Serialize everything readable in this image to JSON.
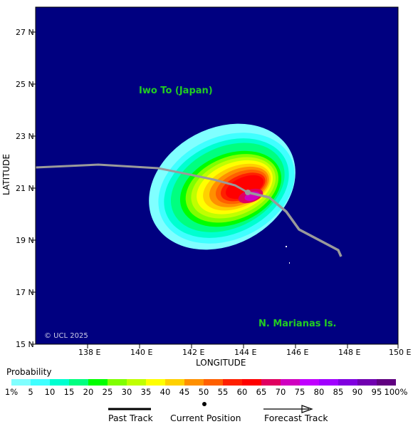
{
  "map": {
    "y_axis_title": "LATITUDE",
    "x_axis_title": "LONGITUDE",
    "lat_ticks": [
      "15 N",
      "17 N",
      "19 N",
      "21 N",
      "23 N",
      "25 N",
      "27 N"
    ],
    "lon_ticks": [
      "138 E",
      "140 E",
      "142 E",
      "144 E",
      "146 E",
      "148 E",
      "150 E"
    ],
    "place_labels": {
      "iwo_to": "Iwo To (Japan)",
      "marianas": "N. Marianas Is."
    },
    "credit": "© UCL 2025",
    "colors": {
      "ocean": "#000080",
      "track": "#9a9a9a"
    }
  },
  "legend": {
    "probability_title": "Probability",
    "scale_labels": [
      "1%",
      "5",
      "10",
      "15",
      "20",
      "25",
      "30",
      "35",
      "40",
      "45",
      "50",
      "55",
      "60",
      "65",
      "70",
      "75",
      "80",
      "85",
      "90",
      "95",
      "100%"
    ],
    "scale_colors": [
      "#80ffff",
      "#40ffff",
      "#00ffd0",
      "#00ff80",
      "#00ff00",
      "#80ff00",
      "#c0ff00",
      "#ffff00",
      "#ffd000",
      "#ff9000",
      "#ff6000",
      "#ff2000",
      "#ff0000",
      "#e00060",
      "#d000c0",
      "#c000ff",
      "#a000ff",
      "#8000e0",
      "#7000b0",
      "#600080"
    ],
    "past_track": "Past Track",
    "current_position": "Current Position",
    "forecast_track": "Forecast Track"
  }
}
